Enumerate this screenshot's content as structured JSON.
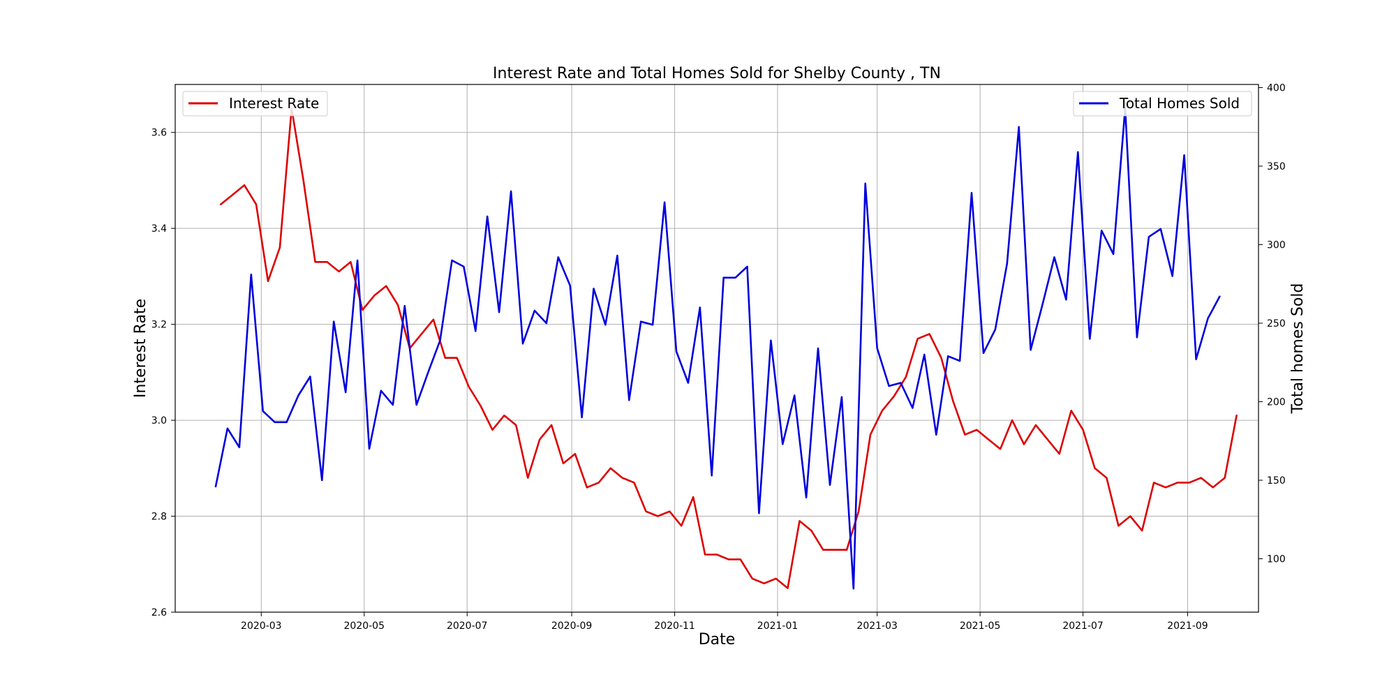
{
  "chart_data": {
    "type": "line",
    "title": "Interest Rate and Total Homes Sold for Shelby County , TN",
    "xlabel": "Date",
    "ylabel_left": "Interest Rate",
    "ylabel_right": "Total homes Sold",
    "x_ticks": [
      "2020-03",
      "2020-05",
      "2020-07",
      "2020-09",
      "2020-11",
      "2021-01",
      "2021-03",
      "2021-05",
      "2021-07",
      "2021-09"
    ],
    "x_tick_dates": [
      "2020-03-01",
      "2020-05-01",
      "2020-07-01",
      "2020-09-01",
      "2020-11-01",
      "2021-01-01",
      "2021-03-01",
      "2021-05-01",
      "2021-07-01",
      "2021-09-01"
    ],
    "xlim": [
      "2020-01-10",
      "2021-10-13"
    ],
    "ylim_left": [
      2.6,
      3.7
    ],
    "yticks_left": [
      "2.6",
      "2.8",
      "3.0",
      "3.2",
      "3.4",
      "3.6"
    ],
    "ylim_right": [
      66,
      402
    ],
    "yticks_right": [
      "100",
      "150",
      "200",
      "250",
      "300",
      "350",
      "400"
    ],
    "grid": true,
    "series": [
      {
        "name": "Interest Rate",
        "axis": "left",
        "color": "#dd0000",
        "legend_position": "upper-left",
        "x": [
          "2020-02-06",
          "2020-02-13",
          "2020-02-20",
          "2020-02-27",
          "2020-03-05",
          "2020-03-12",
          "2020-03-19",
          "2020-03-26",
          "2020-04-02",
          "2020-04-09",
          "2020-04-16",
          "2020-04-23",
          "2020-04-30",
          "2020-05-07",
          "2020-05-14",
          "2020-05-21",
          "2020-05-28",
          "2020-06-04",
          "2020-06-11",
          "2020-06-18",
          "2020-06-25",
          "2020-07-02",
          "2020-07-09",
          "2020-07-16",
          "2020-07-23",
          "2020-07-30",
          "2020-08-06",
          "2020-08-13",
          "2020-08-20",
          "2020-08-27",
          "2020-09-03",
          "2020-09-10",
          "2020-09-17",
          "2020-09-24",
          "2020-10-01",
          "2020-10-08",
          "2020-10-15",
          "2020-10-22",
          "2020-10-29",
          "2020-11-05",
          "2020-11-12",
          "2020-11-19",
          "2020-11-26",
          "2020-12-03",
          "2020-12-10",
          "2020-12-17",
          "2020-12-24",
          "2020-12-31",
          "2021-01-07",
          "2021-01-14",
          "2021-01-21",
          "2021-01-28",
          "2021-02-04",
          "2021-02-11",
          "2021-02-18",
          "2021-02-25",
          "2021-03-04",
          "2021-03-11",
          "2021-03-18",
          "2021-03-25",
          "2021-04-01",
          "2021-04-08",
          "2021-04-15",
          "2021-04-22",
          "2021-04-29",
          "2021-05-06",
          "2021-05-13",
          "2021-05-20",
          "2021-05-27",
          "2021-06-03",
          "2021-06-10",
          "2021-06-17",
          "2021-06-24",
          "2021-07-01",
          "2021-07-08",
          "2021-07-15",
          "2021-07-22",
          "2021-07-29",
          "2021-08-05",
          "2021-08-12",
          "2021-08-19",
          "2021-08-26",
          "2021-09-02",
          "2021-09-09",
          "2021-09-16",
          "2021-09-23",
          "2021-09-30"
        ],
        "y": [
          3.45,
          3.47,
          3.49,
          3.45,
          3.29,
          3.36,
          3.65,
          3.5,
          3.33,
          3.33,
          3.31,
          3.33,
          3.23,
          3.26,
          3.28,
          3.24,
          3.15,
          3.18,
          3.21,
          3.13,
          3.13,
          3.07,
          3.03,
          2.98,
          3.01,
          2.99,
          2.88,
          2.96,
          2.99,
          2.91,
          2.93,
          2.86,
          2.87,
          2.9,
          2.88,
          2.87,
          2.81,
          2.8,
          2.81,
          2.78,
          2.84,
          2.72,
          2.72,
          2.71,
          2.71,
          2.67,
          2.66,
          2.67,
          2.65,
          2.79,
          2.77,
          2.73,
          2.73,
          2.73,
          2.81,
          2.97,
          3.02,
          3.05,
          3.09,
          3.17,
          3.18,
          3.13,
          3.04,
          2.97,
          2.98,
          2.96,
          2.94,
          3.0,
          2.95,
          2.99,
          2.96,
          2.93,
          3.02,
          2.98,
          2.9,
          2.88,
          2.78,
          2.8,
          2.77,
          2.87,
          2.86,
          2.87,
          2.87,
          2.88,
          2.86,
          2.88,
          3.01
        ]
      },
      {
        "name": "Total Homes Sold",
        "axis": "right",
        "color": "#0000dd",
        "legend_position": "upper-right",
        "x": [
          "2020-02-03",
          "2020-02-10",
          "2020-02-17",
          "2020-02-24",
          "2020-03-02",
          "2020-03-09",
          "2020-03-16",
          "2020-03-23",
          "2020-03-30",
          "2020-04-06",
          "2020-04-13",
          "2020-04-20",
          "2020-04-27",
          "2020-05-04",
          "2020-05-11",
          "2020-05-18",
          "2020-05-25",
          "2020-06-01",
          "2020-06-08",
          "2020-06-15",
          "2020-06-22",
          "2020-06-29",
          "2020-07-06",
          "2020-07-13",
          "2020-07-20",
          "2020-07-27",
          "2020-08-03",
          "2020-08-10",
          "2020-08-17",
          "2020-08-24",
          "2020-08-31",
          "2020-09-07",
          "2020-09-14",
          "2020-09-21",
          "2020-09-28",
          "2020-10-05",
          "2020-10-12",
          "2020-10-19",
          "2020-10-26",
          "2020-11-02",
          "2020-11-09",
          "2020-11-16",
          "2020-11-23",
          "2020-11-30",
          "2020-12-07",
          "2020-12-14",
          "2020-12-21",
          "2020-12-28",
          "2021-01-04",
          "2021-01-11",
          "2021-01-18",
          "2021-01-25",
          "2021-02-01",
          "2021-02-08",
          "2021-02-15",
          "2021-02-22",
          "2021-03-01",
          "2021-03-08",
          "2021-03-15",
          "2021-03-22",
          "2021-03-29",
          "2021-04-05",
          "2021-04-12",
          "2021-04-19",
          "2021-04-26",
          "2021-05-03",
          "2021-05-10",
          "2021-05-17",
          "2021-05-24",
          "2021-05-31",
          "2021-06-07",
          "2021-06-14",
          "2021-06-21",
          "2021-06-28",
          "2021-07-05",
          "2021-07-12",
          "2021-07-19",
          "2021-07-26",
          "2021-08-02",
          "2021-08-09",
          "2021-08-16",
          "2021-08-23",
          "2021-08-30",
          "2021-09-06",
          "2021-09-13",
          "2021-09-20"
        ],
        "y": [
          146,
          183,
          171,
          281,
          194,
          187,
          187,
          204,
          216,
          150,
          251,
          206,
          290,
          170,
          207,
          198,
          261,
          198,
          219,
          239,
          290,
          286,
          245,
          318,
          257,
          334,
          237,
          258,
          250,
          292,
          274,
          190,
          272,
          249,
          293,
          201,
          251,
          249,
          327,
          232,
          212,
          260,
          153,
          279,
          279,
          286,
          129,
          239,
          173,
          204,
          139,
          234,
          147,
          203,
          81,
          339,
          234,
          210,
          212,
          196,
          230,
          179,
          229,
          226,
          333,
          231,
          246,
          288,
          375,
          233,
          262,
          292,
          265,
          359,
          240,
          309,
          294,
          387,
          241,
          305,
          310,
          280,
          357,
          227,
          253,
          267
        ]
      }
    ]
  }
}
